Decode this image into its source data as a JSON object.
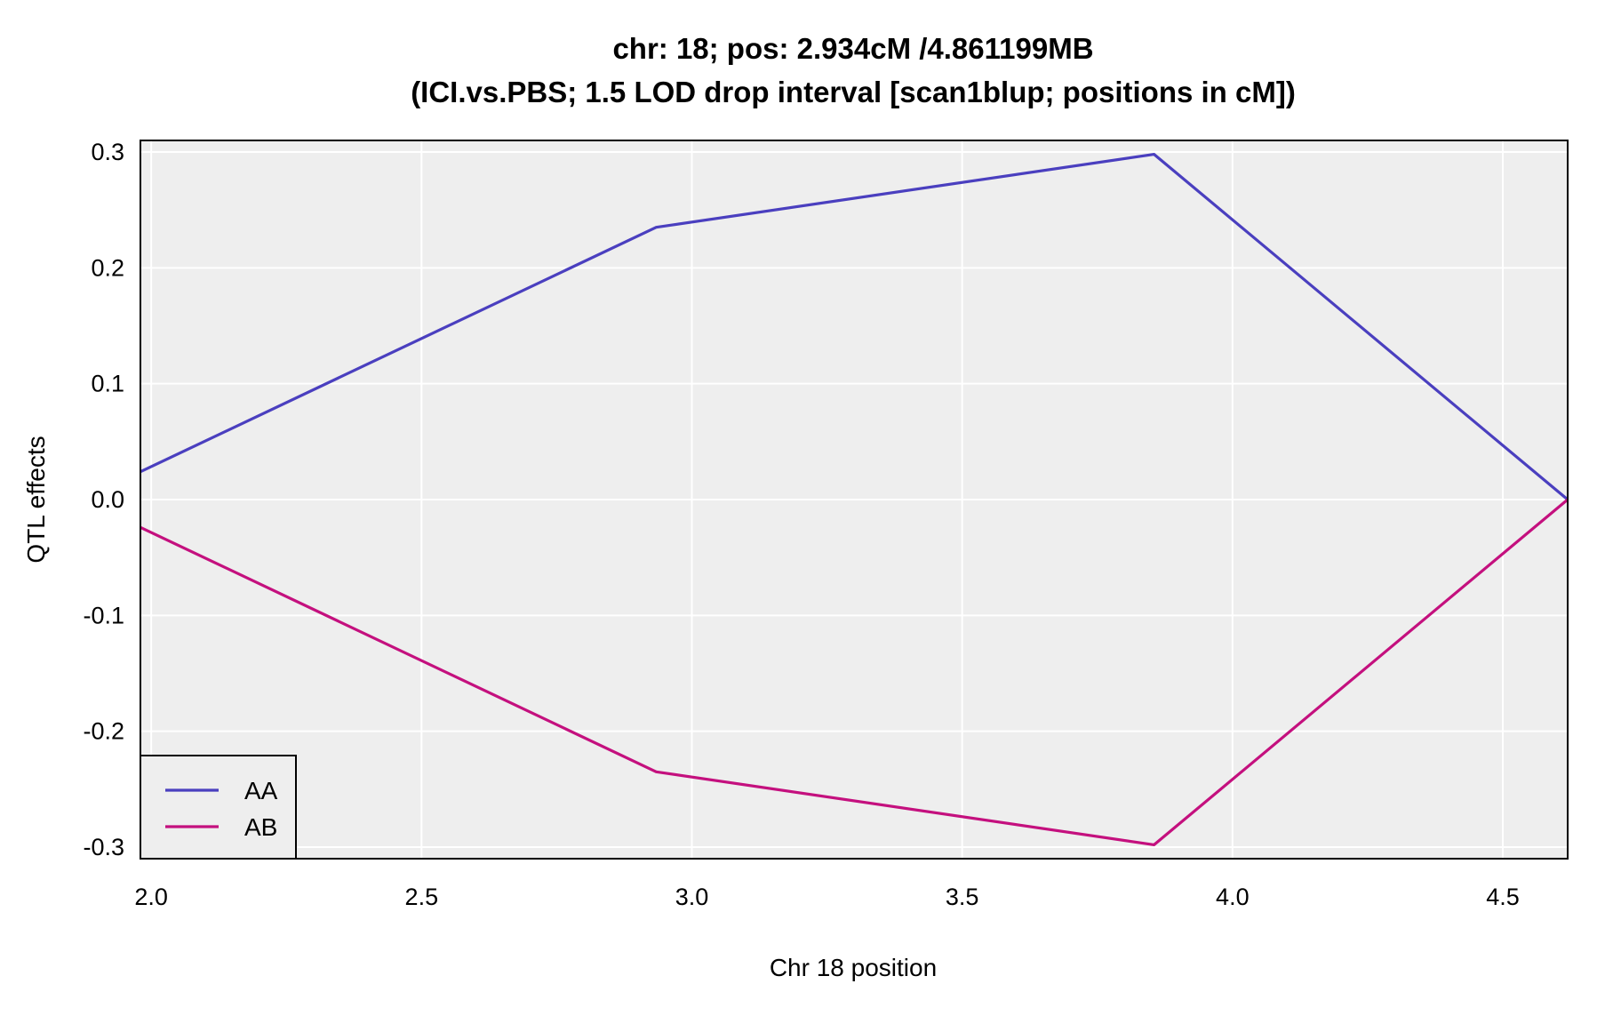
{
  "chart_data": {
    "type": "line",
    "title": "chr: 18; pos: 2.934cM /4.861199MB",
    "subtitle": "(ICI.vs.PBS; 1.5 LOD drop interval [scan1blup; positions in cM])",
    "xlabel": "Chr 18 position",
    "ylabel": "QTL effects",
    "xlim": [
      1.98,
      4.62
    ],
    "ylim": [
      -0.31,
      0.31
    ],
    "xticks": [
      2.0,
      2.5,
      3.0,
      3.5,
      4.0,
      4.5
    ],
    "xtick_labels": [
      "2.0",
      "2.5",
      "3.0",
      "3.5",
      "4.0",
      "4.5"
    ],
    "yticks": [
      0.3,
      0.2,
      0.1,
      0.0,
      -0.1,
      -0.2,
      -0.3
    ],
    "ytick_labels": [
      "0.3",
      "0.2",
      "0.1",
      "0.0",
      "-0.1",
      "-0.2",
      "-0.3"
    ],
    "grid": true,
    "legend_position": "bottom-left",
    "series": [
      {
        "name": "AA",
        "color": "#4a3fbf",
        "x": [
          1.98,
          2.934,
          3.855,
          4.62
        ],
        "y": [
          0.024,
          0.235,
          0.298,
          0.0
        ]
      },
      {
        "name": "AB",
        "color": "#c4107e",
        "x": [
          1.98,
          2.934,
          3.855,
          4.62
        ],
        "y": [
          -0.024,
          -0.235,
          -0.298,
          0.0
        ]
      }
    ]
  }
}
